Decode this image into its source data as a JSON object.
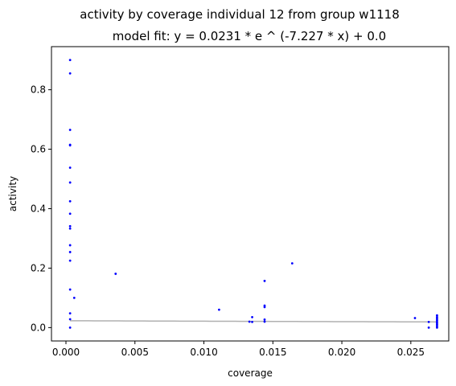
{
  "chart_data": {
    "type": "scatter",
    "title": "activity by coverage individual 12 from group w1118",
    "subtitle": "model fit: y = 0.0231 * e ^ (-7.227 * x) + 0.0",
    "xlabel": "coverage",
    "ylabel": "activity",
    "xlim": [
      -0.00105,
      0.02775
    ],
    "ylim": [
      -0.045,
      0.945
    ],
    "xticks": [
      0.0,
      0.005,
      0.01,
      0.015,
      0.02,
      0.025
    ],
    "xtick_labels": [
      "0.000",
      "0.005",
      "0.010",
      "0.015",
      "0.020",
      "0.025"
    ],
    "yticks": [
      0.0,
      0.2,
      0.4,
      0.6,
      0.8
    ],
    "ytick_labels": [
      "0.0",
      "0.2",
      "0.4",
      "0.6",
      "0.8"
    ],
    "grid": false,
    "legend": "none",
    "colors": {
      "points": "#0000ff",
      "fit": "#b0b0b0"
    },
    "points": [
      [
        0.0003,
        0.9
      ],
      [
        0.0003,
        0.855
      ],
      [
        0.0003,
        0.665
      ],
      [
        0.0003,
        0.615
      ],
      [
        0.0003,
        0.613
      ],
      [
        0.0003,
        0.538
      ],
      [
        0.0003,
        0.488
      ],
      [
        0.0003,
        0.425
      ],
      [
        0.0003,
        0.383
      ],
      [
        0.0003,
        0.341
      ],
      [
        0.0003,
        0.333
      ],
      [
        0.0003,
        0.277
      ],
      [
        0.0003,
        0.254
      ],
      [
        0.0003,
        0.225
      ],
      [
        0.0003,
        0.128
      ],
      [
        0.0003,
        0.048
      ],
      [
        0.0003,
        0.028
      ],
      [
        0.0003,
        0.0
      ],
      [
        0.0006,
        0.1
      ],
      [
        0.0036,
        0.181
      ],
      [
        0.0111,
        0.06
      ],
      [
        0.0133,
        0.02
      ],
      [
        0.0135,
        0.035
      ],
      [
        0.0135,
        0.019
      ],
      [
        0.0144,
        0.157
      ],
      [
        0.0144,
        0.074
      ],
      [
        0.0144,
        0.069
      ],
      [
        0.0144,
        0.027
      ],
      [
        0.0144,
        0.02
      ],
      [
        0.0164,
        0.216
      ],
      [
        0.0253,
        0.032
      ],
      [
        0.0263,
        0.019
      ],
      [
        0.0263,
        0.0
      ],
      [
        0.0269,
        0.041
      ],
      [
        0.0269,
        0.035
      ],
      [
        0.0269,
        0.03
      ],
      [
        0.0269,
        0.025
      ],
      [
        0.0269,
        0.02
      ],
      [
        0.0269,
        0.015
      ],
      [
        0.0269,
        0.01
      ],
      [
        0.0269,
        0.005
      ],
      [
        0.0269,
        0.0
      ]
    ],
    "fit": {
      "a": 0.0231,
      "b": -7.227,
      "c": 0.0,
      "x_range": [
        0.0003,
        0.0269
      ]
    }
  }
}
